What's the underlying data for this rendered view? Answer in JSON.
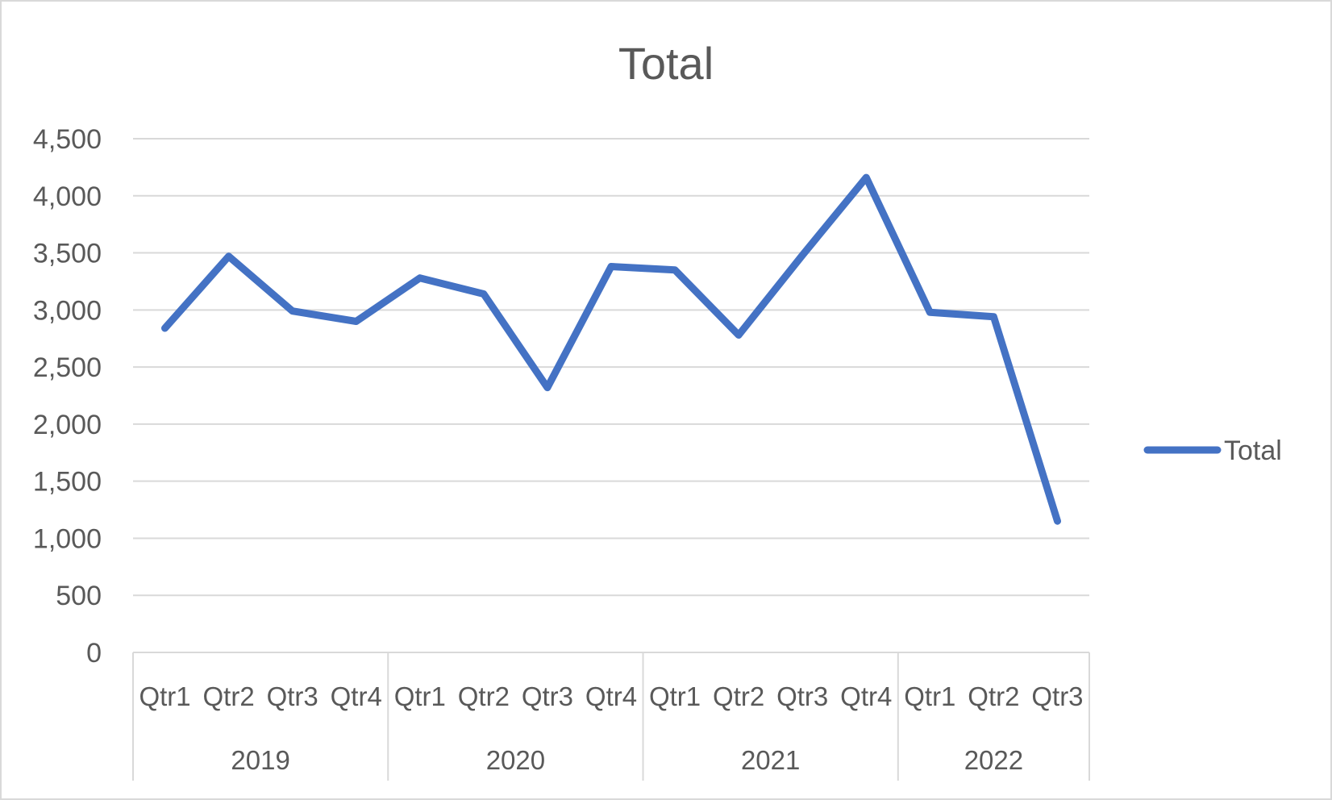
{
  "chart_data": {
    "type": "line",
    "title": "Total",
    "xlabel": "",
    "ylabel": "",
    "ylim": [
      0,
      4500
    ],
    "y_ticks": [
      0,
      500,
      1000,
      1500,
      2000,
      2500,
      3000,
      3500,
      4000,
      4500
    ],
    "y_tick_labels": [
      "0",
      "500",
      "1,000",
      "1,500",
      "2,000",
      "2,500",
      "3,000",
      "3,500",
      "4,000",
      "4,500"
    ],
    "categories": [
      "Qtr1",
      "Qtr2",
      "Qtr3",
      "Qtr4",
      "Qtr1",
      "Qtr2",
      "Qtr3",
      "Qtr4",
      "Qtr1",
      "Qtr2",
      "Qtr3",
      "Qtr4",
      "Qtr1",
      "Qtr2",
      "Qtr3"
    ],
    "groups": [
      {
        "label": "2019",
        "count": 4
      },
      {
        "label": "2020",
        "count": 4
      },
      {
        "label": "2021",
        "count": 4
      },
      {
        "label": "2022",
        "count": 3
      }
    ],
    "series": [
      {
        "name": "Total",
        "color": "#4472c4",
        "values": [
          2840,
          3470,
          2990,
          2900,
          3280,
          3140,
          2320,
          3380,
          3350,
          2780,
          3480,
          4160,
          2980,
          2940,
          1150
        ]
      }
    ],
    "grid": true,
    "legend_position": "right"
  }
}
